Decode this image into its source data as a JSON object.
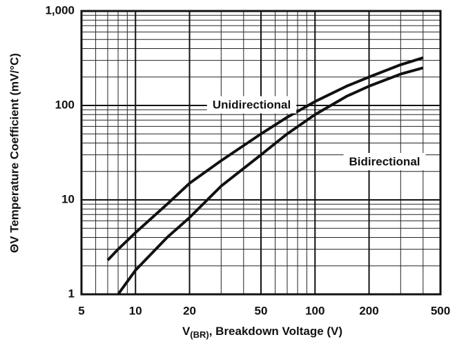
{
  "chart_data": {
    "type": "line",
    "xlabel": {
      "main": "V",
      "sub": "(BR)",
      "rest": ", Breakdown Voltage (V)"
    },
    "ylabel": "ΘV Temperature Coefficient (mV/°C)",
    "x": [
      7,
      8,
      10,
      15,
      20,
      30,
      50,
      70,
      100,
      150,
      200,
      300,
      400
    ],
    "series": [
      {
        "name": "Unidirectional",
        "color": "#111111",
        "values": [
          2.3,
          3,
          4.5,
          9,
          15,
          26,
          50,
          75,
          110,
          160,
          200,
          270,
          320
        ]
      },
      {
        "name": "Bidirectional",
        "color": "#111111",
        "values": [
          null,
          1,
          1.8,
          4,
          6.5,
          14,
          30,
          50,
          80,
          125,
          160,
          215,
          250
        ]
      }
    ],
    "xlim": [
      5,
      500
    ],
    "ylim": [
      1,
      1000
    ],
    "xticks": [
      5,
      10,
      20,
      50,
      100,
      200,
      500
    ],
    "yticks": [
      1,
      10,
      100,
      {
        "value": 1000,
        "label": "1,000"
      }
    ],
    "xscale": "log",
    "yscale": "log",
    "grid": true,
    "minor_grid": true
  }
}
